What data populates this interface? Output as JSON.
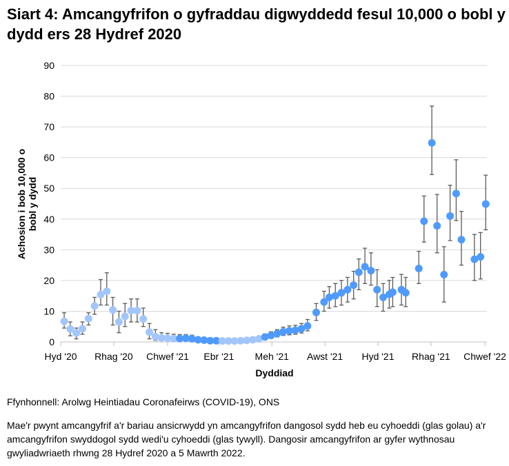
{
  "title": "Siart 4: Amcangyfrifon o gyfraddau digwyddedd fesul 10,000 o bobl y dydd ers 28 Hydref 2020",
  "source": "Ffynhonnell: Arolwg Heintiadau Coronafeirws (COVID-19), ONS",
  "note": "Mae'r pwynt amcangyfrif a'r bariau ansicrwydd yn amcangyfrifon dangosol sydd heb eu cyhoeddi (glas golau) a'r amcangyfrifon swyddogol sydd wedi'u cyhoeddi (glas tywyll). Dangosir amcangyfrifon ar gyfer wythnosau gwyliadwriaeth rhwng 28 Hydref 2020 a 5 Mawrth 2022.",
  "colors": {
    "unpublished": "#a2c6fc",
    "published": "#4f9bfd",
    "error_bar": "#595959",
    "grid": "#d9d9d9"
  },
  "chart_data": {
    "type": "scatter",
    "xlabel": "Dyddiad",
    "ylabel": "Achosion i bob 10,000 o bobl y dydd",
    "ylim": [
      0,
      90
    ],
    "yticks": [
      "0",
      "10",
      "20",
      "30",
      "40",
      "50",
      "60",
      "70",
      "80",
      "90"
    ],
    "xticks": [
      {
        "date": "2020-10-01",
        "label": "Hyd '20"
      },
      {
        "date": "2020-12-01",
        "label": "Rhag '20"
      },
      {
        "date": "2021-02-01",
        "label": "Chwef '21"
      },
      {
        "date": "2021-04-01",
        "label": "Ebr '21"
      },
      {
        "date": "2021-06-01",
        "label": "Meh '21"
      },
      {
        "date": "2021-08-01",
        "label": "Awst '21"
      },
      {
        "date": "2021-10-01",
        "label": "Hyd '21"
      },
      {
        "date": "2021-12-01",
        "label": "Rhag '21"
      },
      {
        "date": "2022-02-01",
        "label": "Chwef '22"
      }
    ],
    "xlim": [
      "2020-10-01",
      "2022-02-04"
    ],
    "grid": true,
    "points": [
      {
        "date": "2020-10-05",
        "value": 6.7,
        "low": 4.5,
        "high": 9.5,
        "published": false
      },
      {
        "date": "2020-10-12",
        "value": 4.2,
        "low": 2.0,
        "high": 6.5,
        "published": false
      },
      {
        "date": "2020-10-19",
        "value": 2.9,
        "low": 1.0,
        "high": 4.5,
        "published": false
      },
      {
        "date": "2020-10-26",
        "value": 4.3,
        "low": 2.5,
        "high": 6.5,
        "published": false
      },
      {
        "date": "2020-11-02",
        "value": 7.6,
        "low": 5.5,
        "high": 9.5,
        "published": false
      },
      {
        "date": "2020-11-09",
        "value": 11.7,
        "low": 9.0,
        "high": 14.5,
        "published": false
      },
      {
        "date": "2020-11-16",
        "value": 15.4,
        "low": 12.0,
        "high": 20.3,
        "published": false
      },
      {
        "date": "2020-11-23",
        "value": 16.5,
        "low": 12.0,
        "high": 22.5,
        "published": false
      },
      {
        "date": "2020-11-30",
        "value": 10.4,
        "low": 5.5,
        "high": 14.5,
        "published": false
      },
      {
        "date": "2020-12-07",
        "value": 6.5,
        "low": 3.0,
        "high": 10.0,
        "published": false
      },
      {
        "date": "2020-12-14",
        "value": 8.3,
        "low": 5.0,
        "high": 12.5,
        "published": false
      },
      {
        "date": "2020-12-21",
        "value": 10.2,
        "low": 6.5,
        "high": 14.0,
        "published": false
      },
      {
        "date": "2020-12-28",
        "value": 10.2,
        "low": 6.5,
        "high": 14.0,
        "published": false
      },
      {
        "date": "2021-01-04",
        "value": 7.5,
        "low": 5.0,
        "high": 11.0,
        "published": false
      },
      {
        "date": "2021-01-11",
        "value": 3.2,
        "low": 1.0,
        "high": 6.0,
        "published": false
      },
      {
        "date": "2021-01-18",
        "value": 1.7,
        "low": 0.5,
        "high": 4.0,
        "published": false
      },
      {
        "date": "2021-01-25",
        "value": 1.3,
        "low": 0.5,
        "high": 3.0,
        "published": false
      },
      {
        "date": "2021-02-01",
        "value": 1.2,
        "low": 0.5,
        "high": 2.8,
        "published": false
      },
      {
        "date": "2021-02-08",
        "value": 1.1,
        "low": 0.5,
        "high": 2.5,
        "published": false
      },
      {
        "date": "2021-02-15",
        "value": 1.1,
        "low": 0.4,
        "high": 2.4,
        "published": true
      },
      {
        "date": "2021-02-22",
        "value": 1.2,
        "low": 0.5,
        "high": 2.4,
        "published": true
      },
      {
        "date": "2021-03-01",
        "value": 1.0,
        "low": 0.4,
        "high": 2.2,
        "published": true
      },
      {
        "date": "2021-03-08",
        "value": 0.7,
        "low": 0.3,
        "high": 1.6,
        "published": true
      },
      {
        "date": "2021-03-15",
        "value": 0.6,
        "low": 0.2,
        "high": 1.4,
        "published": true
      },
      {
        "date": "2021-03-22",
        "value": 0.4,
        "low": 0.1,
        "high": 1.0,
        "published": true
      },
      {
        "date": "2021-03-29",
        "value": 0.4,
        "low": 0.1,
        "high": 1.0,
        "published": true
      },
      {
        "date": "2021-04-05",
        "value": 0.3,
        "low": 0.1,
        "high": 0.8,
        "published": false
      },
      {
        "date": "2021-04-12",
        "value": 0.3,
        "low": 0.1,
        "high": 0.8,
        "published": false
      },
      {
        "date": "2021-04-19",
        "value": 0.3,
        "low": 0.1,
        "high": 0.8,
        "published": false
      },
      {
        "date": "2021-04-26",
        "value": 0.4,
        "low": 0.1,
        "high": 0.9,
        "published": false
      },
      {
        "date": "2021-05-03",
        "value": 0.5,
        "low": 0.2,
        "high": 1.1,
        "published": false
      },
      {
        "date": "2021-05-10",
        "value": 0.7,
        "low": 0.3,
        "high": 1.4,
        "published": false
      },
      {
        "date": "2021-05-17",
        "value": 1.0,
        "low": 0.4,
        "high": 1.8,
        "published": false
      },
      {
        "date": "2021-05-24",
        "value": 1.6,
        "low": 0.8,
        "high": 2.6,
        "published": true
      },
      {
        "date": "2021-05-31",
        "value": 2.1,
        "low": 1.2,
        "high": 3.3,
        "published": true
      },
      {
        "date": "2021-06-07",
        "value": 2.7,
        "low": 1.6,
        "high": 4.0,
        "published": true
      },
      {
        "date": "2021-06-14",
        "value": 3.3,
        "low": 2.1,
        "high": 4.8,
        "published": true
      },
      {
        "date": "2021-06-21",
        "value": 3.6,
        "low": 2.3,
        "high": 5.2,
        "published": true
      },
      {
        "date": "2021-06-28",
        "value": 3.8,
        "low": 2.5,
        "high": 5.4,
        "published": true
      },
      {
        "date": "2021-07-05",
        "value": 4.3,
        "low": 2.9,
        "high": 6.0,
        "published": true
      },
      {
        "date": "2021-07-12",
        "value": 5.2,
        "low": 3.6,
        "high": 7.3,
        "published": true
      },
      {
        "date": "2021-07-22",
        "value": 9.6,
        "low": 7.0,
        "high": 12.5,
        "published": true
      },
      {
        "date": "2021-07-31",
        "value": 13.0,
        "low": 10.0,
        "high": 16.5,
        "published": true
      },
      {
        "date": "2021-08-06",
        "value": 14.5,
        "low": 11.0,
        "high": 18.0,
        "published": true
      },
      {
        "date": "2021-08-13",
        "value": 15.0,
        "low": 11.5,
        "high": 19.0,
        "published": true
      },
      {
        "date": "2021-08-20",
        "value": 16.0,
        "low": 12.0,
        "high": 20.0,
        "published": true
      },
      {
        "date": "2021-08-27",
        "value": 17.0,
        "low": 13.0,
        "high": 21.0,
        "published": true
      },
      {
        "date": "2021-09-03",
        "value": 18.5,
        "low": 14.0,
        "high": 23.0,
        "published": true
      },
      {
        "date": "2021-09-09",
        "value": 22.7,
        "low": 17.0,
        "high": 27.0,
        "published": true
      },
      {
        "date": "2021-09-16",
        "value": 24.5,
        "low": 19.0,
        "high": 30.5,
        "published": true
      },
      {
        "date": "2021-09-23",
        "value": 23.2,
        "low": 18.5,
        "high": 29.0,
        "published": true
      },
      {
        "date": "2021-09-30",
        "value": 17.0,
        "low": 11.5,
        "high": 23.5,
        "published": true
      },
      {
        "date": "2021-10-07",
        "value": 14.5,
        "low": 10.0,
        "high": 19.0,
        "published": true
      },
      {
        "date": "2021-10-14",
        "value": 15.5,
        "low": 11.0,
        "high": 20.0,
        "published": true
      },
      {
        "date": "2021-10-18",
        "value": 16.2,
        "low": 11.5,
        "high": 21.0,
        "published": true
      },
      {
        "date": "2021-10-28",
        "value": 17.0,
        "low": 12.0,
        "high": 22.0,
        "published": true
      },
      {
        "date": "2021-11-02",
        "value": 16.0,
        "low": 11.5,
        "high": 21.0,
        "published": true
      },
      {
        "date": "2021-11-17",
        "value": 23.9,
        "low": 19.0,
        "high": 29.5,
        "published": true
      },
      {
        "date": "2021-11-23",
        "value": 39.3,
        "low": 32.5,
        "high": 47.5,
        "published": true
      },
      {
        "date": "2021-12-02",
        "value": 64.8,
        "low": 54.5,
        "high": 76.8,
        "published": true
      },
      {
        "date": "2021-12-08",
        "value": 37.8,
        "low": 29.0,
        "high": 48.0,
        "published": true
      },
      {
        "date": "2021-12-16",
        "value": 21.9,
        "low": 13.0,
        "high": 31.0,
        "published": true
      },
      {
        "date": "2021-12-23",
        "value": 41.0,
        "low": 33.0,
        "high": 51.0,
        "published": true
      },
      {
        "date": "2021-12-30",
        "value": 48.3,
        "low": 39.5,
        "high": 59.3,
        "published": true
      },
      {
        "date": "2022-01-05",
        "value": 33.3,
        "low": 25.0,
        "high": 42.5,
        "published": true
      },
      {
        "date": "2022-01-20",
        "value": 26.9,
        "low": 20.0,
        "high": 35.0,
        "published": true
      },
      {
        "date": "2022-01-27",
        "value": 27.7,
        "low": 20.5,
        "high": 35.6,
        "published": true
      },
      {
        "date": "2022-02-02",
        "value": 44.9,
        "low": 36.5,
        "high": 54.3,
        "published": true
      }
    ]
  }
}
